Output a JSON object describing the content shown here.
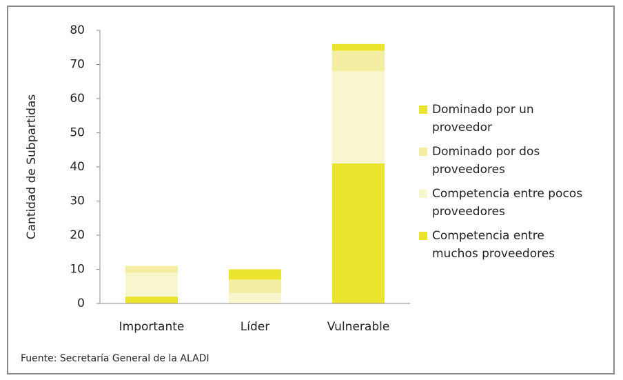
{
  "chart_data": {
    "type": "stacked_bar",
    "y_label": "Cantidad de Subpartidas",
    "categories": [
      "Importante",
      "Líder",
      "Vulnerable"
    ],
    "series": [
      {
        "name": "Competencia entre muchos proveedores",
        "color": "#ebe42e",
        "values": [
          2,
          0,
          41
        ]
      },
      {
        "name": "Competencia entre pocos proveedores",
        "color": "#f8f6cc",
        "values": [
          7,
          3,
          27
        ]
      },
      {
        "name": "Dominado por dos proveedores",
        "color": "#f3eea2",
        "values": [
          2,
          4,
          6
        ]
      },
      {
        "name": "Dominado por un proveedor",
        "color": "#ebe42e",
        "values": [
          0,
          3,
          2
        ]
      }
    ],
    "ylim": [
      0,
      80
    ],
    "yticks": [
      0,
      10,
      20,
      30,
      40,
      50,
      60,
      70,
      80
    ],
    "source": "Fuente: Secretaría General  de la ALADI"
  }
}
